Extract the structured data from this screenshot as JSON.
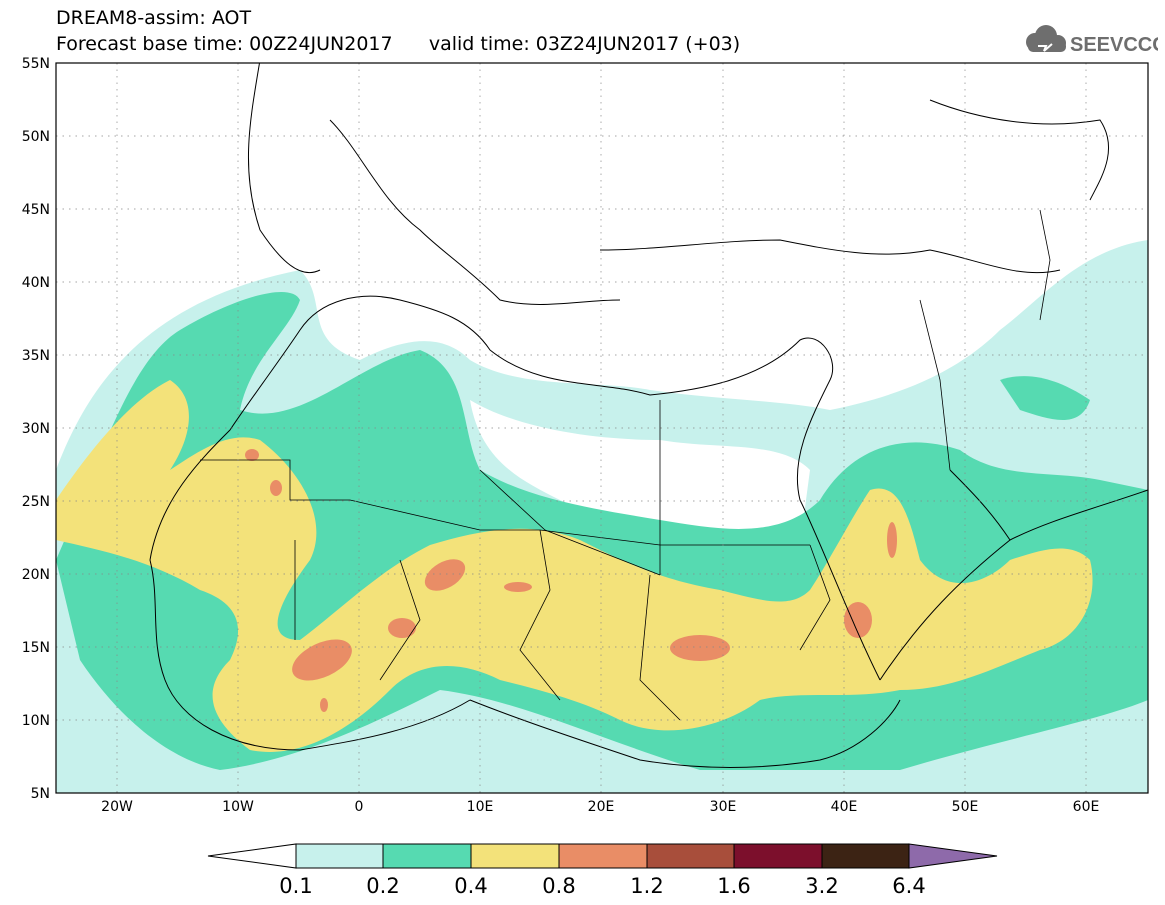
{
  "header": {
    "model_title": "DREAM8-assim: AOT",
    "base_time": "Forecast base time: 00Z24JUN2017",
    "valid_time": "valid time: 03Z24JUN2017 (+03)",
    "logo_text": "SEEVCCC"
  },
  "map": {
    "lon_range": [
      -25,
      65
    ],
    "lat_range": [
      5,
      55
    ],
    "lat_ticks": [
      "55N",
      "50N",
      "45N",
      "40N",
      "35N",
      "30N",
      "25N",
      "20N",
      "15N",
      "10N",
      "5N"
    ],
    "lon_ticks": [
      "20W",
      "10W",
      "0",
      "10E",
      "20E",
      "30E",
      "40E",
      "50E",
      "60E"
    ],
    "grid": "dotted",
    "field": "aerosol optical thickness"
  },
  "colorbar": {
    "levels": [
      "0.1",
      "0.2",
      "0.4",
      "0.8",
      "1.2",
      "1.6",
      "3.2",
      "6.4"
    ],
    "colors": {
      "under": "#ffffff",
      "c1": "#c7f1ec",
      "c2": "#56dab1",
      "c3": "#f3e27a",
      "c4": "#e98d66",
      "c5": "#a84e3b",
      "c6": "#7c0f2c",
      "c7": "#3c2314",
      "over": "#8e6aaa"
    }
  }
}
